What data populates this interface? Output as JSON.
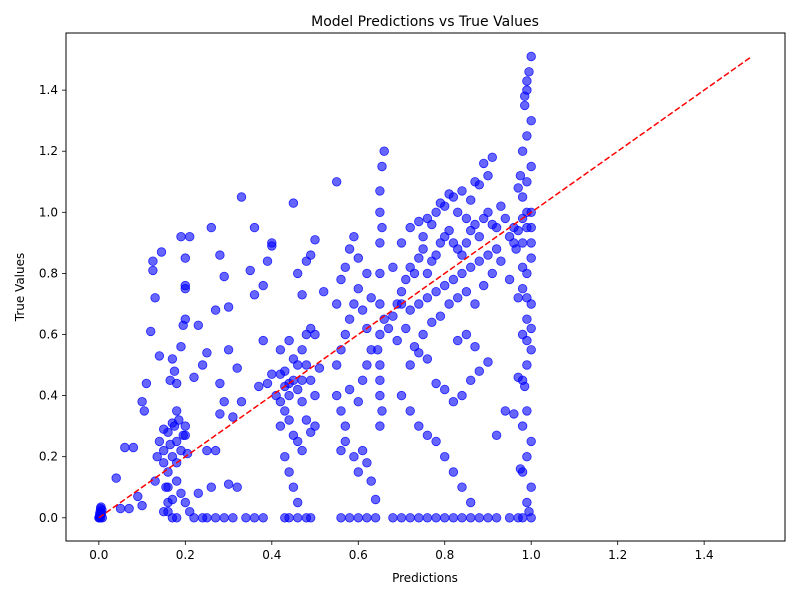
{
  "chart_data": {
    "type": "scatter",
    "title": "Model Predictions vs True Values",
    "xlabel": "Predictions",
    "ylabel": "True Values",
    "xlim": [
      -0.076,
      1.587
    ],
    "ylim": [
      -0.076,
      1.587
    ],
    "xticks": [
      0.0,
      0.2,
      0.4,
      0.6,
      0.8,
      1.0,
      1.2,
      1.4
    ],
    "yticks": [
      0.0,
      0.2,
      0.4,
      0.6,
      0.8,
      1.0,
      1.2,
      1.4
    ],
    "xtick_labels": [
      "0.0",
      "0.2",
      "0.4",
      "0.6",
      "0.8",
      "1.0",
      "1.2",
      "1.4"
    ],
    "ytick_labels": [
      "0.0",
      "0.2",
      "0.4",
      "0.6",
      "0.8",
      "1.0",
      "1.2",
      "1.4"
    ],
    "grid": false,
    "marker_color": "#0000ff",
    "marker_alpha": 0.6,
    "reference_line": {
      "style": "dashed",
      "color": "#ff0000",
      "from": [
        0.0,
        0.0
      ],
      "to": [
        1.51,
        1.51
      ]
    },
    "points": [
      [
        0.0,
        0.0
      ],
      [
        0.005,
        0.01
      ],
      [
        0.003,
        0.02
      ],
      [
        0.004,
        0.03
      ],
      [
        0.002,
        0.005
      ],
      [
        0.006,
        0.015
      ],
      [
        0.001,
        0.0
      ],
      [
        0.004,
        0.0
      ],
      [
        0.008,
        0.0
      ],
      [
        0.005,
        0.035
      ],
      [
        0.007,
        0.025
      ],
      [
        0.002,
        0.012
      ],
      [
        0.04,
        0.13
      ],
      [
        0.05,
        0.03
      ],
      [
        0.06,
        0.23
      ],
      [
        0.07,
        0.03
      ],
      [
        0.08,
        0.23
      ],
      [
        0.09,
        0.07
      ],
      [
        0.1,
        0.38
      ],
      [
        0.105,
        0.35
      ],
      [
        0.11,
        0.44
      ],
      [
        0.12,
        0.61
      ],
      [
        0.125,
        0.84
      ],
      [
        0.125,
        0.81
      ],
      [
        0.13,
        0.72
      ],
      [
        0.14,
        0.53
      ],
      [
        0.145,
        0.87
      ],
      [
        0.1,
        0.04
      ],
      [
        0.13,
        0.12
      ],
      [
        0.135,
        0.2
      ],
      [
        0.14,
        0.25
      ],
      [
        0.15,
        0.29
      ],
      [
        0.15,
        0.18
      ],
      [
        0.155,
        0.1
      ],
      [
        0.16,
        0.05
      ],
      [
        0.16,
        0.02
      ],
      [
        0.17,
        0.0
      ],
      [
        0.18,
        0.0
      ],
      [
        0.165,
        0.45
      ],
      [
        0.17,
        0.52
      ],
      [
        0.175,
        0.48
      ],
      [
        0.18,
        0.44
      ],
      [
        0.18,
        0.35
      ],
      [
        0.19,
        0.56
      ],
      [
        0.195,
        0.63
      ],
      [
        0.2,
        0.65
      ],
      [
        0.2,
        0.75
      ],
      [
        0.2,
        0.76
      ],
      [
        0.2,
        0.85
      ],
      [
        0.21,
        0.92
      ],
      [
        0.19,
        0.92
      ],
      [
        0.22,
        0.46
      ],
      [
        0.15,
        0.22
      ],
      [
        0.16,
        0.28
      ],
      [
        0.17,
        0.31
      ],
      [
        0.18,
        0.25
      ],
      [
        0.19,
        0.22
      ],
      [
        0.2,
        0.3
      ],
      [
        0.17,
        0.2
      ],
      [
        0.16,
        0.15
      ],
      [
        0.18,
        0.12
      ],
      [
        0.19,
        0.08
      ],
      [
        0.2,
        0.05
      ],
      [
        0.21,
        0.02
      ],
      [
        0.22,
        0.0
      ],
      [
        0.24,
        0.0
      ],
      [
        0.2,
        0.27
      ],
      [
        0.18,
        0.18
      ],
      [
        0.165,
        0.24
      ],
      [
        0.175,
        0.3
      ],
      [
        0.185,
        0.32
      ],
      [
        0.195,
        0.27
      ],
      [
        0.205,
        0.21
      ],
      [
        0.16,
        0.1
      ],
      [
        0.17,
        0.06
      ],
      [
        0.15,
        0.02
      ],
      [
        0.23,
        0.63
      ],
      [
        0.24,
        0.5
      ],
      [
        0.25,
        0.54
      ],
      [
        0.26,
        0.95
      ],
      [
        0.27,
        0.68
      ],
      [
        0.28,
        0.86
      ],
      [
        0.29,
        0.79
      ],
      [
        0.3,
        0.55
      ],
      [
        0.28,
        0.44
      ],
      [
        0.29,
        0.38
      ],
      [
        0.3,
        0.69
      ],
      [
        0.32,
        0.49
      ],
      [
        0.33,
        1.05
      ],
      [
        0.35,
        0.81
      ],
      [
        0.36,
        0.95
      ],
      [
        0.38,
        0.58
      ],
      [
        0.4,
        0.47
      ],
      [
        0.26,
        0.1
      ],
      [
        0.3,
        0.11
      ],
      [
        0.32,
        0.1
      ],
      [
        0.34,
        0.0
      ],
      [
        0.36,
        0.0
      ],
      [
        0.38,
        0.0
      ],
      [
        0.25,
        0.0
      ],
      [
        0.27,
        0.0
      ],
      [
        0.29,
        0.0
      ],
      [
        0.31,
        0.0
      ],
      [
        0.23,
        0.08
      ],
      [
        0.25,
        0.22
      ],
      [
        0.27,
        0.22
      ],
      [
        0.28,
        0.34
      ],
      [
        0.31,
        0.33
      ],
      [
        0.37,
        0.43
      ],
      [
        0.39,
        0.44
      ],
      [
        0.33,
        0.38
      ],
      [
        0.36,
        0.73
      ],
      [
        0.38,
        0.76
      ],
      [
        0.39,
        0.84
      ],
      [
        0.4,
        0.89
      ],
      [
        0.4,
        0.9
      ],
      [
        0.42,
        0.3
      ],
      [
        0.43,
        0.35
      ],
      [
        0.44,
        0.4
      ],
      [
        0.45,
        0.45
      ],
      [
        0.46,
        0.5
      ],
      [
        0.47,
        0.55
      ],
      [
        0.48,
        0.6
      ],
      [
        0.49,
        0.62
      ],
      [
        0.44,
        0.58
      ],
      [
        0.45,
        0.52
      ],
      [
        0.46,
        0.42
      ],
      [
        0.47,
        0.38
      ],
      [
        0.48,
        0.32
      ],
      [
        0.49,
        0.28
      ],
      [
        0.43,
        0.48
      ],
      [
        0.42,
        0.55
      ],
      [
        0.44,
        0.32
      ],
      [
        0.45,
        0.27
      ],
      [
        0.46,
        0.25
      ],
      [
        0.47,
        0.22
      ],
      [
        0.43,
        0.2
      ],
      [
        0.44,
        0.15
      ],
      [
        0.45,
        0.1
      ],
      [
        0.46,
        0.05
      ],
      [
        0.43,
        0.0
      ],
      [
        0.44,
        0.0
      ],
      [
        0.46,
        0.0
      ],
      [
        0.48,
        0.0
      ],
      [
        0.49,
        0.0
      ],
      [
        0.45,
        1.03
      ],
      [
        0.46,
        0.8
      ],
      [
        0.47,
        0.73
      ],
      [
        0.48,
        0.84
      ],
      [
        0.49,
        0.86
      ],
      [
        0.5,
        0.91
      ],
      [
        0.5,
        0.6
      ],
      [
        0.5,
        0.4
      ],
      [
        0.5,
        0.3
      ],
      [
        0.51,
        0.49
      ],
      [
        0.52,
        0.74
      ],
      [
        0.42,
        0.47
      ],
      [
        0.43,
        0.43
      ],
      [
        0.47,
        0.45
      ],
      [
        0.48,
        0.5
      ],
      [
        0.49,
        0.45
      ],
      [
        0.41,
        0.4
      ],
      [
        0.42,
        0.38
      ],
      [
        0.44,
        0.44
      ],
      [
        0.55,
        0.5
      ],
      [
        0.56,
        0.55
      ],
      [
        0.57,
        0.6
      ],
      [
        0.58,
        0.65
      ],
      [
        0.59,
        0.7
      ],
      [
        0.6,
        0.75
      ],
      [
        0.61,
        0.68
      ],
      [
        0.62,
        0.62
      ],
      [
        0.55,
        0.7
      ],
      [
        0.56,
        0.78
      ],
      [
        0.57,
        0.82
      ],
      [
        0.58,
        0.88
      ],
      [
        0.59,
        0.92
      ],
      [
        0.6,
        0.85
      ],
      [
        0.62,
        0.8
      ],
      [
        0.63,
        0.72
      ],
      [
        0.55,
        0.4
      ],
      [
        0.56,
        0.35
      ],
      [
        0.57,
        0.3
      ],
      [
        0.58,
        0.42
      ],
      [
        0.6,
        0.38
      ],
      [
        0.61,
        0.45
      ],
      [
        0.62,
        0.5
      ],
      [
        0.63,
        0.55
      ],
      [
        0.56,
        0.0
      ],
      [
        0.58,
        0.0
      ],
      [
        0.6,
        0.0
      ],
      [
        0.62,
        0.0
      ],
      [
        0.64,
        0.0
      ],
      [
        0.55,
        1.1
      ],
      [
        0.57,
        0.25
      ],
      [
        0.59,
        0.2
      ],
      [
        0.6,
        0.15
      ],
      [
        0.61,
        0.22
      ],
      [
        0.62,
        0.18
      ],
      [
        0.63,
        0.12
      ],
      [
        0.64,
        0.06
      ],
      [
        0.56,
        0.22
      ],
      [
        0.65,
        0.3
      ],
      [
        0.65,
        0.4
      ],
      [
        0.65,
        0.5
      ],
      [
        0.65,
        0.6
      ],
      [
        0.65,
        0.7
      ],
      [
        0.65,
        0.8
      ],
      [
        0.65,
        0.9
      ],
      [
        0.65,
        1.0
      ],
      [
        0.65,
        1.07
      ],
      [
        0.655,
        1.15
      ],
      [
        0.66,
        1.2
      ],
      [
        0.65,
        0.45
      ],
      [
        0.655,
        0.35
      ],
      [
        0.66,
        0.65
      ],
      [
        0.645,
        0.55
      ],
      [
        0.655,
        0.95
      ],
      [
        0.67,
        0.62
      ],
      [
        0.68,
        0.66
      ],
      [
        0.69,
        0.7
      ],
      [
        0.7,
        0.74
      ],
      [
        0.71,
        0.78
      ],
      [
        0.72,
        0.82
      ],
      [
        0.73,
        0.8
      ],
      [
        0.74,
        0.85
      ],
      [
        0.75,
        0.88
      ],
      [
        0.76,
        0.8
      ],
      [
        0.77,
        0.84
      ],
      [
        0.78,
        0.86
      ],
      [
        0.79,
        0.9
      ],
      [
        0.8,
        0.92
      ],
      [
        0.81,
        0.94
      ],
      [
        0.82,
        0.9
      ],
      [
        0.83,
        0.88
      ],
      [
        0.84,
        0.86
      ],
      [
        0.85,
        0.9
      ],
      [
        0.86,
        0.94
      ],
      [
        0.87,
        0.96
      ],
      [
        0.88,
        0.92
      ],
      [
        0.89,
        0.98
      ],
      [
        0.9,
        1.0
      ],
      [
        0.91,
        0.96
      ],
      [
        0.92,
        0.95
      ],
      [
        0.93,
        1.02
      ],
      [
        0.94,
        0.98
      ],
      [
        0.95,
        0.92
      ],
      [
        0.96,
        0.9
      ],
      [
        0.97,
        0.94
      ],
      [
        0.98,
        0.98
      ],
      [
        0.7,
        0.7
      ],
      [
        0.72,
        0.68
      ],
      [
        0.74,
        0.7
      ],
      [
        0.76,
        0.72
      ],
      [
        0.78,
        0.74
      ],
      [
        0.8,
        0.76
      ],
      [
        0.82,
        0.78
      ],
      [
        0.84,
        0.8
      ],
      [
        0.86,
        0.82
      ],
      [
        0.88,
        0.84
      ],
      [
        0.9,
        0.86
      ],
      [
        0.92,
        0.88
      ],
      [
        0.68,
        0.82
      ],
      [
        0.7,
        0.9
      ],
      [
        0.72,
        0.95
      ],
      [
        0.74,
        0.97
      ],
      [
        0.76,
        0.98
      ],
      [
        0.78,
        1.0
      ],
      [
        0.8,
        1.02
      ],
      [
        0.82,
        1.05
      ],
      [
        0.84,
        1.07
      ],
      [
        0.86,
        1.04
      ],
      [
        0.88,
        1.09
      ],
      [
        0.9,
        1.12
      ],
      [
        0.7,
        0.4
      ],
      [
        0.72,
        0.35
      ],
      [
        0.74,
        0.3
      ],
      [
        0.76,
        0.27
      ],
      [
        0.78,
        0.25
      ],
      [
        0.8,
        0.2
      ],
      [
        0.82,
        0.15
      ],
      [
        0.84,
        0.1
      ],
      [
        0.86,
        0.05
      ],
      [
        0.88,
        0.0
      ],
      [
        0.9,
        0.0
      ],
      [
        0.92,
        0.0
      ],
      [
        0.68,
        0.0
      ],
      [
        0.7,
        0.0
      ],
      [
        0.72,
        0.0
      ],
      [
        0.74,
        0.0
      ],
      [
        0.76,
        0.0
      ],
      [
        0.78,
        0.0
      ],
      [
        0.8,
        0.0
      ],
      [
        0.82,
        0.0
      ],
      [
        0.84,
        0.0
      ],
      [
        0.86,
        0.0
      ],
      [
        0.95,
        0.0
      ],
      [
        0.97,
        0.0
      ],
      [
        0.69,
        0.58
      ],
      [
        0.71,
        0.62
      ],
      [
        0.73,
        0.56
      ],
      [
        0.75,
        0.6
      ],
      [
        0.77,
        0.64
      ],
      [
        0.79,
        0.66
      ],
      [
        0.81,
        0.7
      ],
      [
        0.83,
        0.72
      ],
      [
        0.85,
        0.74
      ],
      [
        0.87,
        0.7
      ],
      [
        0.89,
        0.76
      ],
      [
        0.91,
        0.8
      ],
      [
        0.93,
        0.84
      ],
      [
        0.95,
        0.78
      ],
      [
        0.97,
        0.72
      ],
      [
        0.94,
        0.35
      ],
      [
        0.96,
        0.34
      ],
      [
        0.92,
        0.27
      ],
      [
        0.9,
        0.51
      ],
      [
        0.88,
        0.48
      ],
      [
        0.86,
        0.45
      ],
      [
        0.84,
        0.4
      ],
      [
        0.82,
        0.38
      ],
      [
        0.8,
        0.42
      ],
      [
        0.78,
        0.44
      ],
      [
        0.76,
        0.52
      ],
      [
        0.74,
        0.54
      ],
      [
        0.72,
        0.5
      ],
      [
        0.83,
        0.58
      ],
      [
        0.85,
        0.6
      ],
      [
        0.87,
        0.56
      ],
      [
        0.75,
        0.92
      ],
      [
        0.77,
        0.96
      ],
      [
        0.79,
        1.03
      ],
      [
        0.81,
        1.06
      ],
      [
        0.91,
        1.18
      ],
      [
        0.89,
        1.16
      ],
      [
        0.87,
        1.1
      ],
      [
        0.85,
        0.98
      ],
      [
        0.83,
        1.0
      ],
      [
        0.98,
        0.45
      ],
      [
        0.99,
        0.5
      ],
      [
        1.0,
        0.55
      ],
      [
        0.98,
        0.6
      ],
      [
        0.99,
        0.65
      ],
      [
        1.0,
        0.7
      ],
      [
        0.98,
        0.75
      ],
      [
        0.99,
        0.8
      ],
      [
        1.0,
        0.85
      ],
      [
        0.98,
        0.9
      ],
      [
        0.99,
        0.95
      ],
      [
        1.0,
        1.0
      ],
      [
        0.98,
        1.05
      ],
      [
        0.99,
        1.1
      ],
      [
        1.0,
        1.15
      ],
      [
        0.98,
        1.2
      ],
      [
        0.99,
        1.25
      ],
      [
        1.0,
        1.3
      ],
      [
        0.985,
        1.35
      ],
      [
        0.99,
        1.4
      ],
      [
        0.995,
        1.46
      ],
      [
        1.0,
        1.51
      ],
      [
        0.99,
        1.43
      ],
      [
        0.985,
        1.38
      ],
      [
        0.99,
        0.35
      ],
      [
        0.98,
        0.3
      ],
      [
        1.0,
        0.25
      ],
      [
        0.99,
        0.2
      ],
      [
        0.98,
        0.15
      ],
      [
        1.0,
        0.1
      ],
      [
        0.99,
        0.05
      ],
      [
        0.98,
        0.0
      ],
      [
        1.0,
        0.0
      ],
      [
        0.995,
        0.02
      ],
      [
        0.985,
        0.43
      ],
      [
        0.975,
        0.16
      ],
      [
        0.97,
        0.46
      ],
      [
        0.965,
        0.88
      ],
      [
        0.96,
        0.95
      ],
      [
        0.97,
        1.08
      ],
      [
        0.975,
        1.12
      ],
      [
        0.99,
        1.0
      ],
      [
        1.0,
        0.9
      ],
      [
        0.98,
        0.82
      ],
      [
        0.99,
        0.72
      ],
      [
        1.0,
        0.62
      ],
      [
        0.99,
        0.58
      ],
      [
        1.0,
        0.95
      ]
    ]
  }
}
